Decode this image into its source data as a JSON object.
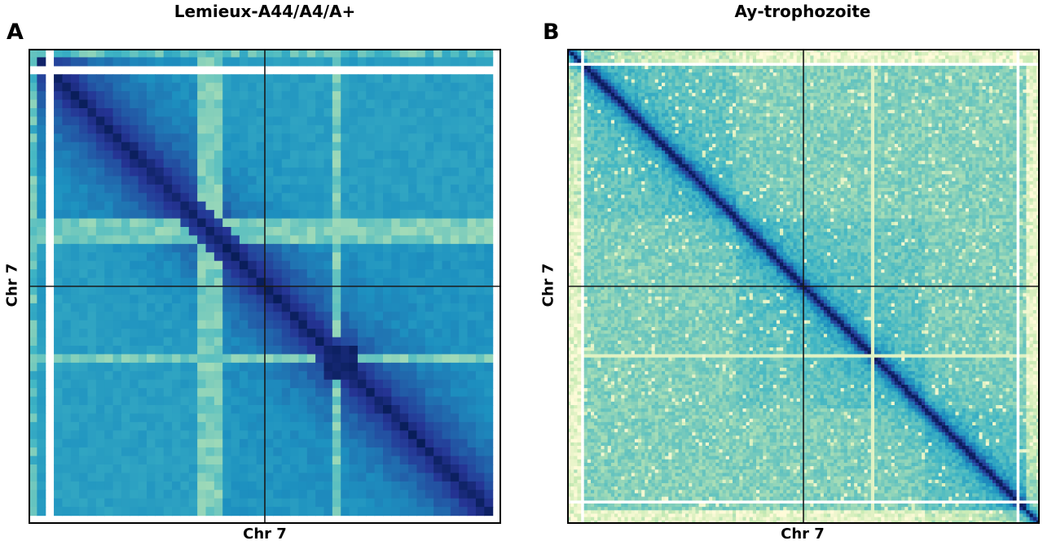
{
  "chart_data": [
    {
      "type": "heatmap",
      "panel_label": "A",
      "title": "Lemieux-A44/A4/A+",
      "xlabel": "Chr 7",
      "ylabel": "Chr 7",
      "bins": 56,
      "colormap": [
        "#fffbd9",
        "#c9ebb4",
        "#7fcdbb",
        "#41b6c4",
        "#1d91c0",
        "#225ea8",
        "#253494",
        "#081d58"
      ],
      "crosshair_fraction": 0.5,
      "missing_bins": [
        2,
        55
      ],
      "sparse_bin_fraction": 0.37,
      "sparse_bin_center_fraction": 0.64,
      "enriched_block_fraction_range": [
        0.61,
        0.68
      ],
      "domain_boundary_fractions": [
        0.35
      ]
    },
    {
      "type": "heatmap",
      "panel_label": "B",
      "title": "Ay-trophozoite",
      "xlabel": "Chr 7",
      "ylabel": "Chr 7",
      "bins": 140,
      "colormap": [
        "#fffbd9",
        "#c9ebb4",
        "#7fcdbb",
        "#41b6c4",
        "#1d91c0",
        "#225ea8",
        "#253494",
        "#081d58"
      ],
      "crosshair_fraction": 0.5,
      "missing_bins": [
        4,
        133
      ],
      "sparse_bin_center_fraction": 0.64,
      "domain_boundary_fractions": [
        0.35,
        0.75
      ]
    }
  ]
}
